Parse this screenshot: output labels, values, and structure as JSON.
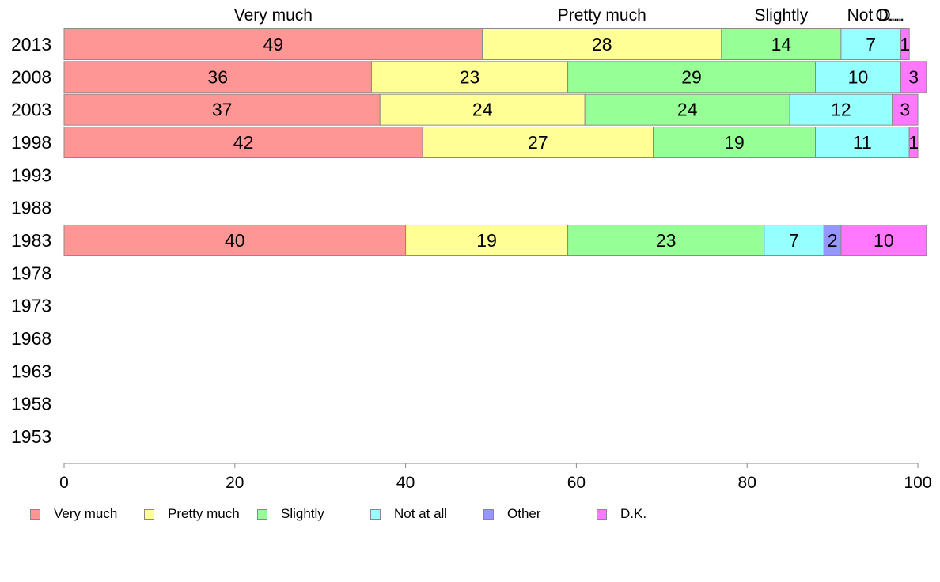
{
  "chart_data": {
    "type": "bar",
    "orientation": "horizontal",
    "stacked": true,
    "categories": [
      "2013",
      "2008",
      "2003",
      "1998",
      "1993",
      "1988",
      "1983",
      "1978",
      "1973",
      "1968",
      "1963",
      "1958",
      "1953"
    ],
    "series": [
      {
        "name": "Very much",
        "color": "#ff9696",
        "values": [
          49,
          36,
          37,
          42,
          null,
          null,
          40,
          null,
          null,
          null,
          null,
          null,
          null
        ]
      },
      {
        "name": "Pretty much",
        "color": "#ffff96",
        "values": [
          28,
          23,
          24,
          27,
          null,
          null,
          19,
          null,
          null,
          null,
          null,
          null,
          null
        ]
      },
      {
        "name": "Slightly",
        "color": "#96ff96",
        "values": [
          14,
          29,
          24,
          19,
          null,
          null,
          23,
          null,
          null,
          null,
          null,
          null,
          null
        ]
      },
      {
        "name": "Not at all",
        "color": "#96ffff",
        "values": [
          7,
          10,
          12,
          11,
          null,
          null,
          7,
          null,
          null,
          null,
          null,
          null,
          null
        ]
      },
      {
        "name": "Other",
        "color": "#9696ff",
        "values": [
          0,
          0,
          0,
          0,
          null,
          null,
          2,
          null,
          null,
          null,
          null,
          null,
          null
        ]
      },
      {
        "name": "D.K.",
        "color": "#ff78ff",
        "values": [
          1,
          3,
          3,
          1,
          null,
          null,
          10,
          null,
          null,
          null,
          null,
          null,
          null
        ]
      }
    ],
    "top_labels": [
      "Very much",
      "Pretty much",
      "Slightly",
      "Not ...",
      "O...",
      "D..."
    ],
    "xlim": [
      0,
      100
    ],
    "xticks": [
      "0",
      "20",
      "40",
      "60",
      "80",
      "100"
    ],
    "grid": false,
    "legend_position": "bottom"
  }
}
